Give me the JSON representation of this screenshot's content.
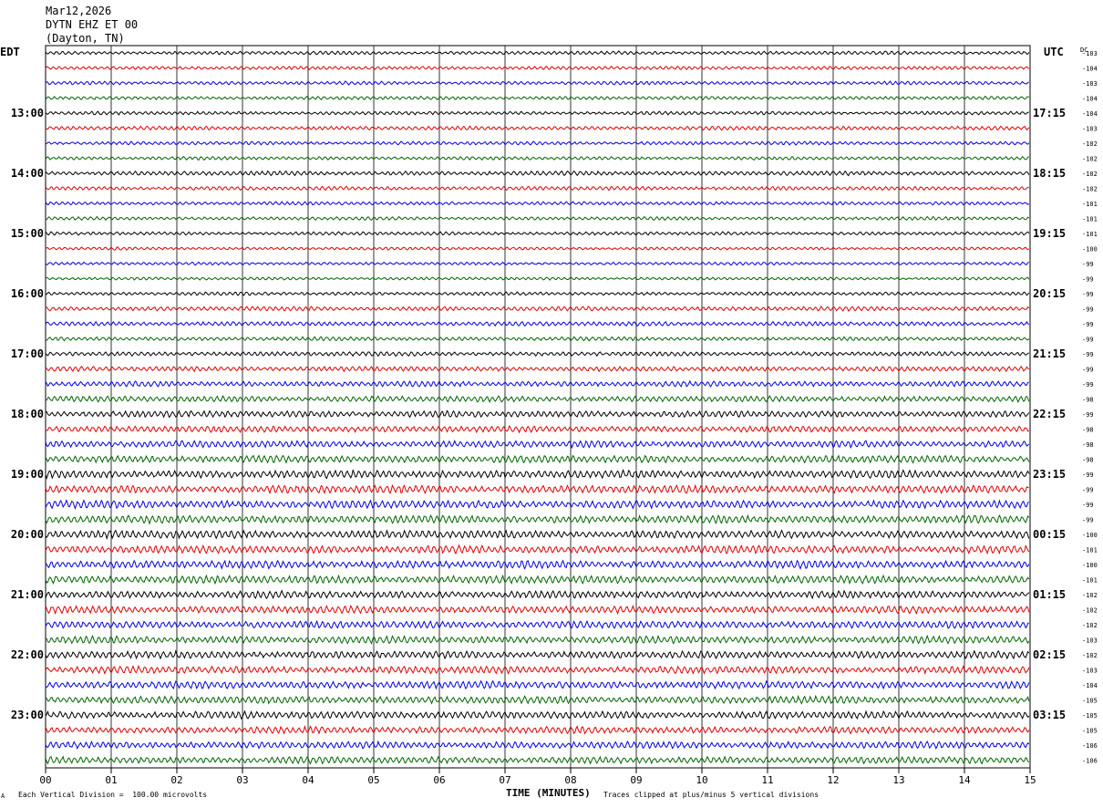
{
  "header": {
    "date": "Mar12,2026",
    "station": "DYTN EHZ ET 00",
    "location": "(Dayton, TN)"
  },
  "left_timezone": "EDT",
  "right_timezone": "UTC",
  "dc_label": "DC",
  "footer": {
    "scale_note": "Each Vertical Division =  100.00 microvolts",
    "clip_note": "Traces clipped at plus/minus 5 vertical divisions",
    "corner_mark": "A"
  },
  "chart_data": {
    "type": "line",
    "title": "",
    "xlabel": "TIME (MINUTES)",
    "ylabel": "",
    "x_ticks": [
      "00",
      "01",
      "02",
      "03",
      "04",
      "05",
      "06",
      "07",
      "08",
      "09",
      "10",
      "11",
      "12",
      "13",
      "14",
      "15"
    ],
    "xlim": [
      0,
      15
    ],
    "grid": true,
    "colors": [
      "#000000",
      "#e00000",
      "#0000e0",
      "#006400"
    ],
    "left_hour_labels": [
      "13:00",
      "14:00",
      "15:00",
      "16:00",
      "17:00",
      "18:00",
      "19:00",
      "20:00",
      "21:00",
      "22:00",
      "23:00"
    ],
    "right_hour_labels": [
      "17:15",
      "18:15",
      "19:15",
      "20:15",
      "21:15",
      "22:15",
      "23:15",
      "00:15",
      "01:15",
      "02:15",
      "03:15"
    ],
    "dc_offsets": [
      "-103",
      "-104",
      "-103",
      "-104",
      "-104",
      "-103",
      "-102",
      "-102",
      "-102",
      "-102",
      "-101",
      "-101",
      "-101",
      "-100",
      "-99",
      "-99",
      "-99",
      "-99",
      "-99",
      "-99",
      "-99",
      "-99",
      "-99",
      "-98",
      "-99",
      "-98",
      "-98",
      "-98",
      "-99",
      "-99",
      "-99",
      "-99",
      "-100",
      "-101",
      "-100",
      "-101",
      "-102",
      "-102",
      "-102",
      "-103",
      "-102",
      "-103",
      "-104",
      "-105",
      "-105",
      "-105",
      "-106",
      "-106"
    ],
    "trace_count": 48,
    "relative_amplitude": [
      0.35,
      0.35,
      0.35,
      0.35,
      0.35,
      0.4,
      0.35,
      0.35,
      0.45,
      0.4,
      0.35,
      0.35,
      0.35,
      0.3,
      0.3,
      0.3,
      0.35,
      0.45,
      0.45,
      0.4,
      0.45,
      0.5,
      0.55,
      0.6,
      0.65,
      0.65,
      0.7,
      0.75,
      0.8,
      0.8,
      0.8,
      0.8,
      0.8,
      0.8,
      0.8,
      0.8,
      0.75,
      0.75,
      0.75,
      0.75,
      0.75,
      0.75,
      0.75,
      0.75,
      0.75,
      0.7,
      0.7,
      0.7
    ]
  }
}
